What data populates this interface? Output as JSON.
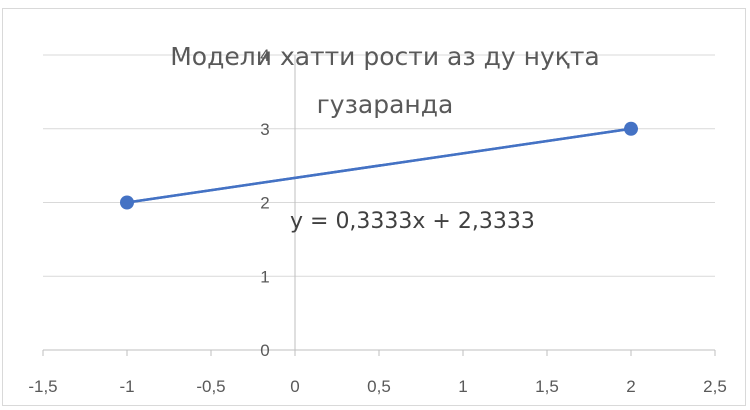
{
  "chart_data": {
    "type": "scatter",
    "title_line1": "Модели хатти рости аз ду нуқта",
    "title_line2": "гузаранда",
    "equation": "y = 0,3333x + 2,3333",
    "x_ticks": [
      "-1,5",
      "-1",
      "-0,5",
      "0",
      "0,5",
      "1",
      "1,5",
      "2",
      "2,5"
    ],
    "y_ticks": [
      "0",
      "1",
      "2",
      "3",
      "4"
    ],
    "xlim": [
      -1.5,
      2.5
    ],
    "ylim": [
      0,
      4
    ],
    "grid": "horizontal",
    "series": [
      {
        "x": [
          -1,
          2
        ],
        "y": [
          2,
          3
        ],
        "color": "#4472c4",
        "marker": "circle"
      }
    ],
    "trendline": {
      "slope": 0.3333,
      "intercept": 2.3333,
      "color": "#4472c4"
    }
  }
}
